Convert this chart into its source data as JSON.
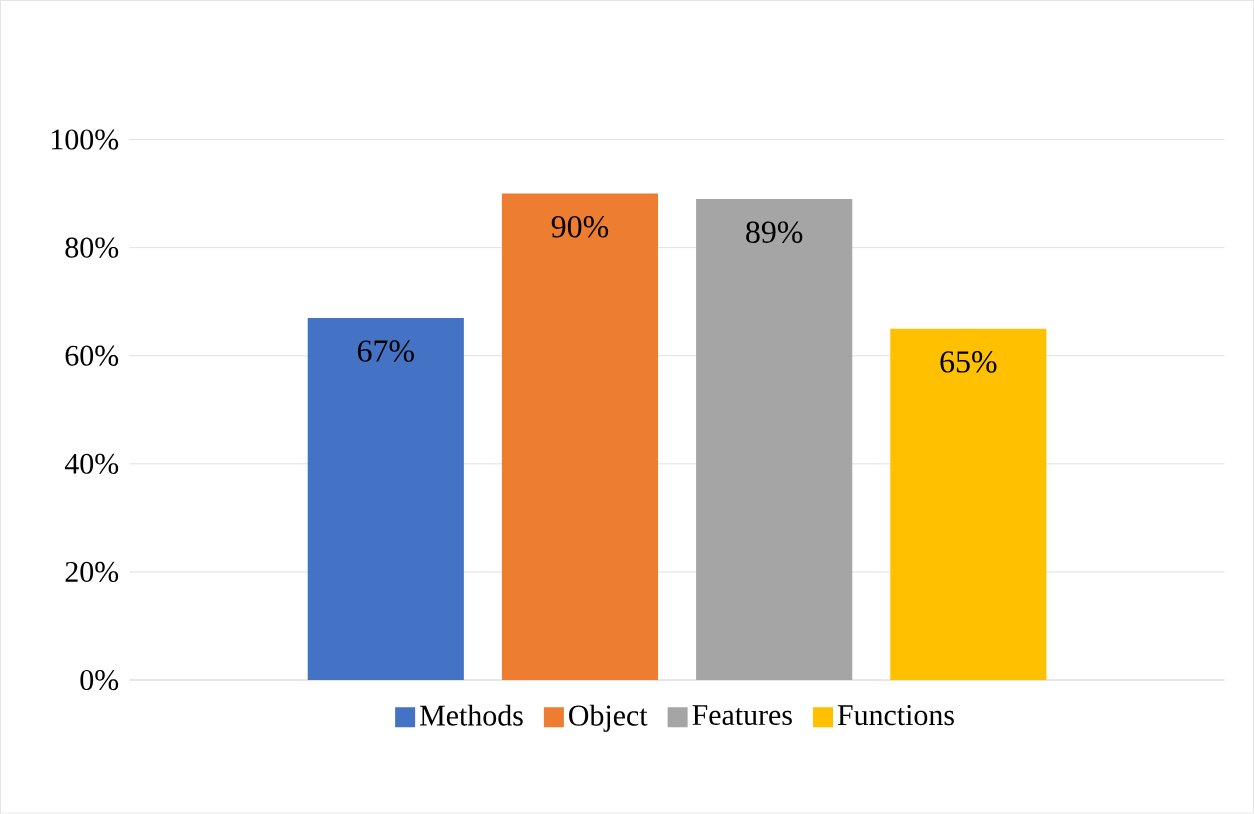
{
  "chart_data": {
    "type": "bar",
    "categories": [
      null
    ],
    "series": [
      {
        "name": "Methods",
        "color": "#4472c4",
        "values": [
          67
        ],
        "value_labels": [
          "67%"
        ]
      },
      {
        "name": "Object",
        "color": "#ed7d31",
        "values": [
          90
        ],
        "value_labels": [
          "90%"
        ]
      },
      {
        "name": "Features",
        "color": "#a5a5a5",
        "values": [
          89
        ],
        "value_labels": [
          "89%"
        ]
      },
      {
        "name": "Functions",
        "color": "#ffc000",
        "values": [
          65
        ],
        "value_labels": [
          "65%"
        ]
      }
    ],
    "ylim": [
      0,
      100
    ],
    "yticks": [
      {
        "value": 0,
        "label": "0%"
      },
      {
        "value": 20,
        "label": "20%"
      },
      {
        "value": 40,
        "label": "40%"
      },
      {
        "value": 60,
        "label": "60%"
      },
      {
        "value": 80,
        "label": "80%"
      },
      {
        "value": 100,
        "label": "100%"
      }
    ],
    "grid": "y",
    "legend": "bottom"
  }
}
